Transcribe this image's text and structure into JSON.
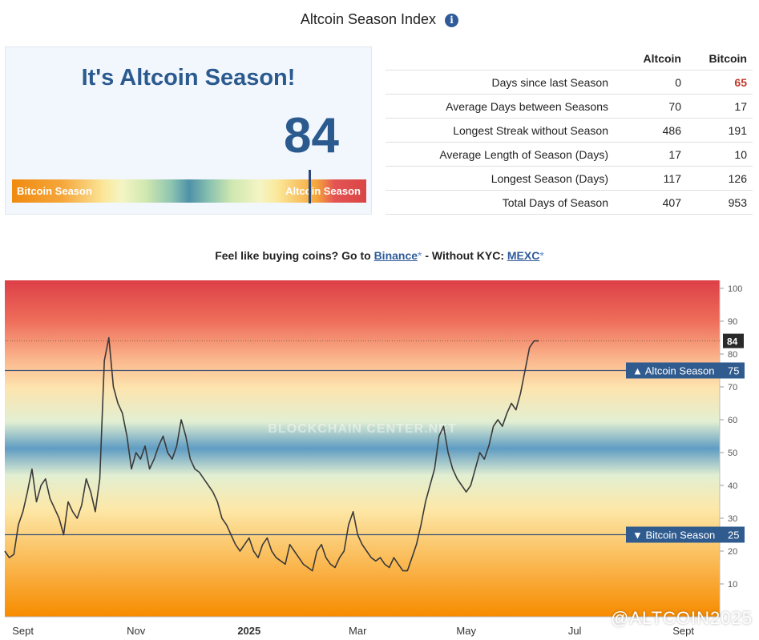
{
  "header": {
    "title": "Altcoin Season Index",
    "info_icon": "info-icon",
    "info_glyph": "i"
  },
  "status": {
    "headline": "It's Altcoin Season!",
    "value": "84",
    "gauge_left_label": "Bitcoin Season",
    "gauge_right_label": "Altcoin Season",
    "gauge_level": 0.84
  },
  "stats": {
    "headers": [
      "",
      "Altcoin",
      "Bitcoin"
    ],
    "rows": [
      {
        "label": "Days since last Season",
        "altcoin": "0",
        "bitcoin": "65"
      },
      {
        "label": "Average Days between Seasons",
        "altcoin": "70",
        "bitcoin": "17"
      },
      {
        "label": "Longest Streak without Season",
        "altcoin": "486",
        "bitcoin": "191"
      },
      {
        "label": "Average Length of Season (Days)",
        "altcoin": "17",
        "bitcoin": "10"
      },
      {
        "label": "Longest Season (Days)",
        "altcoin": "117",
        "bitcoin": "126"
      },
      {
        "label": "Total Days of Season",
        "altcoin": "407",
        "bitcoin": "953"
      }
    ]
  },
  "promo": {
    "text": "Feel like buying coins? Go to",
    "link1": "Binance",
    "star": "*",
    "mid": "- Without KYC:",
    "link2": "MEXC"
  },
  "chart_data": {
    "type": "line",
    "ylim": [
      0,
      100
    ],
    "yticks": [
      10,
      20,
      30,
      40,
      50,
      60,
      70,
      80,
      90,
      100
    ],
    "xtick_labels": [
      "Sept",
      "Nov",
      "2025",
      "Mar",
      "May",
      "Jul",
      "Sept"
    ],
    "xtick_index": [
      4,
      29,
      54,
      78,
      102,
      126,
      150
    ],
    "current_value": 84,
    "current_label": "84",
    "reference_lines": [
      {
        "label": "▲ Altcoin Season",
        "value": 75,
        "value_label": "75",
        "color": "#2f5b8f"
      },
      {
        "label": "▼ Bitcoin Season",
        "value": 25,
        "value_label": "25",
        "color": "#2f5b8f"
      }
    ],
    "watermark": "BLOCKCHAIN CENTER.NET",
    "series": [
      {
        "values": [
          20,
          18,
          19,
          28,
          32,
          38,
          45,
          35,
          40,
          42,
          36,
          33,
          30,
          25,
          35,
          32,
          30,
          34,
          42,
          38,
          32,
          42,
          78,
          85,
          70,
          65,
          62,
          55,
          45,
          50,
          48,
          52,
          45,
          48,
          52,
          55,
          50,
          48,
          52,
          60,
          55,
          48,
          45,
          44,
          42,
          40,
          38,
          35,
          30,
          28,
          25,
          22,
          20,
          22,
          24,
          20,
          18,
          22,
          24,
          20,
          18,
          17,
          16,
          22,
          20,
          18,
          16,
          15,
          14,
          20,
          22,
          18,
          16,
          15,
          18,
          20,
          28,
          32,
          25,
          22,
          20,
          18,
          17,
          18,
          16,
          15,
          18,
          16,
          14,
          14,
          18,
          22,
          28,
          35,
          40,
          45,
          55,
          58,
          50,
          45,
          42,
          40,
          38,
          40,
          45,
          50,
          48,
          52,
          58,
          60,
          58,
          62,
          65,
          63,
          68,
          75,
          82,
          84,
          84
        ]
      }
    ]
  },
  "footer": {
    "watermark": "@ALTCOIN2025"
  }
}
